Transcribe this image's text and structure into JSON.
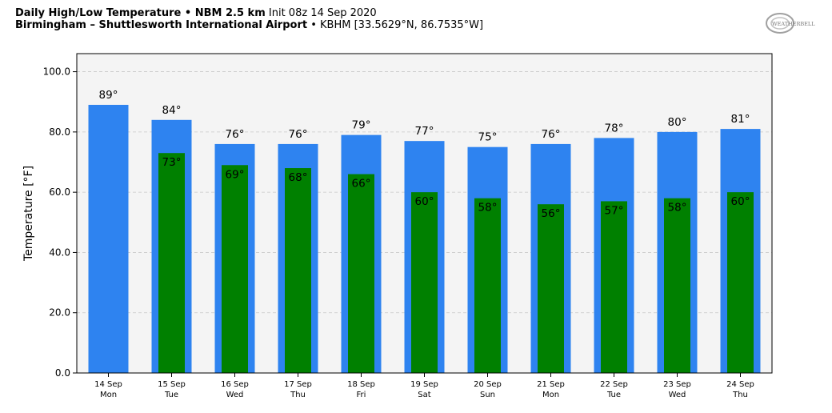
{
  "header": {
    "title_bold": "Daily High/Low Temperature • NBM 2.5 km",
    "title_init": "Init 08z 14 Sep 2020",
    "location_bold": "Birmingham – Shuttlesworth International Airport",
    "location_rest": "• KBHM [33.5629°N, 86.7535°W]"
  },
  "logo": {
    "text": "WEATHERBELL"
  },
  "colors": {
    "high": "#2e83f0",
    "low": "#008000",
    "plot_bg": "#f4f4f4",
    "grid": "#c8c8c8"
  },
  "chart_data": {
    "type": "bar",
    "ylabel": "Temperature [°F]",
    "ylim": [
      0,
      106
    ],
    "yticks": [
      "0.0",
      "20.0",
      "40.0",
      "60.0",
      "80.0",
      "100.0"
    ],
    "ytick_values": [
      0,
      20,
      40,
      60,
      80,
      100
    ],
    "grid": true,
    "categories": [
      {
        "date": "14 Sep",
        "day": "Mon"
      },
      {
        "date": "15 Sep",
        "day": "Tue"
      },
      {
        "date": "16 Sep",
        "day": "Wed"
      },
      {
        "date": "17 Sep",
        "day": "Thu"
      },
      {
        "date": "18 Sep",
        "day": "Fri"
      },
      {
        "date": "19 Sep",
        "day": "Sat"
      },
      {
        "date": "20 Sep",
        "day": "Sun"
      },
      {
        "date": "21 Sep",
        "day": "Mon"
      },
      {
        "date": "22 Sep",
        "day": "Tue"
      },
      {
        "date": "23 Sep",
        "day": "Wed"
      },
      {
        "date": "24 Sep",
        "day": "Thu"
      }
    ],
    "series": [
      {
        "values": [
          89,
          84,
          76,
          76,
          79,
          77,
          75,
          76,
          78,
          80,
          81
        ],
        "labels": [
          "89°",
          "84°",
          "76°",
          "76°",
          "79°",
          "77°",
          "75°",
          "76°",
          "78°",
          "80°",
          "81°"
        ]
      },
      {
        "values": [
          null,
          73,
          69,
          68,
          66,
          60,
          58,
          56,
          57,
          58,
          60
        ],
        "labels": [
          "",
          "73°",
          "69°",
          "68°",
          "66°",
          "60°",
          "58°",
          "56°",
          "57°",
          "58°",
          "60°"
        ]
      }
    ]
  }
}
